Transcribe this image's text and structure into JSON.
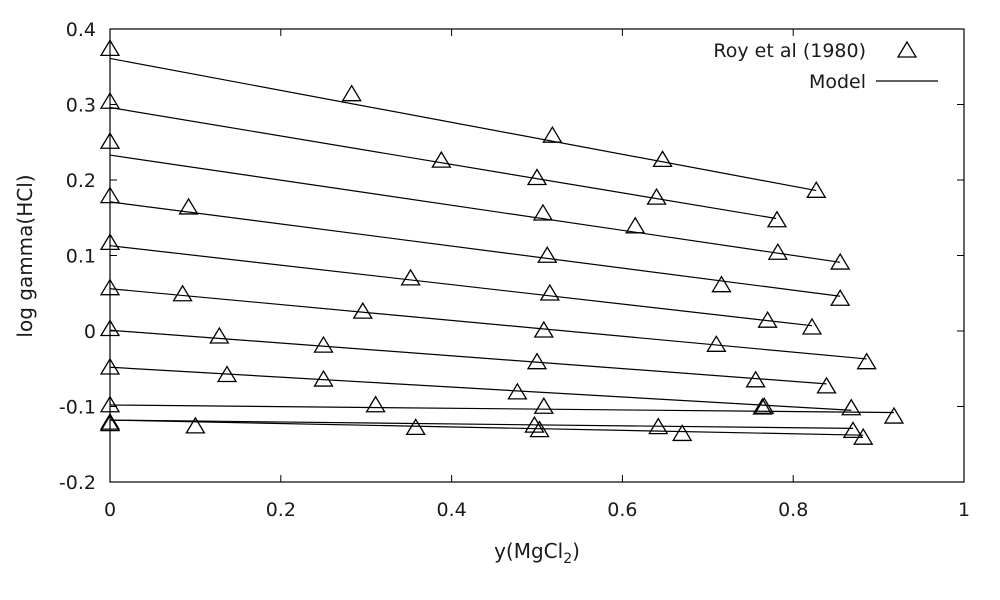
{
  "chart_data": {
    "type": "scatter",
    "xlabel": {
      "base": "y(MgCl",
      "sub": "2",
      "tail": ")"
    },
    "ylabel": "log gamma(HCl)",
    "xlim": [
      0,
      1
    ],
    "ylim": [
      -0.2,
      0.4
    ],
    "xticks": [
      0,
      0.2,
      0.4,
      0.6,
      0.8,
      1
    ],
    "xtick_labels": [
      "0",
      "0.2",
      "0.4",
      "0.6",
      "0.8",
      "1"
    ],
    "yticks": [
      -0.2,
      -0.1,
      0,
      0.1,
      0.2,
      0.3,
      0.4
    ],
    "ytick_labels": [
      "-0.2",
      "-0.1",
      "0",
      "0.1",
      "0.2",
      "0.3",
      "0.4"
    ],
    "grid": false,
    "legend_position": "top-right",
    "legend": [
      {
        "label": "Roy et al (1980)",
        "marker": "triangle-open"
      },
      {
        "label": "Model",
        "marker": "line"
      }
    ],
    "series": [
      {
        "name": "Roy et al (1980)",
        "type": "scatter",
        "marker": "triangle-open",
        "points": [
          [
            0,
            0.375
          ],
          [
            0.283,
            0.315
          ],
          [
            0.518,
            0.26
          ],
          [
            0.647,
            0.228
          ],
          [
            0.827,
            0.187
          ],
          [
            0,
            0.305
          ],
          [
            0.388,
            0.227
          ],
          [
            0.5,
            0.204
          ],
          [
            0.64,
            0.178
          ],
          [
            0.781,
            0.148
          ],
          [
            0,
            0.252
          ],
          [
            0.507,
            0.157
          ],
          [
            0.615,
            0.14
          ],
          [
            0.782,
            0.105
          ],
          [
            0.855,
            0.092
          ],
          [
            0,
            0.18
          ],
          [
            0.092,
            0.165
          ],
          [
            0.512,
            0.101
          ],
          [
            0.716,
            0.062
          ],
          [
            0.855,
            0.044
          ],
          [
            0,
            0.118
          ],
          [
            0.352,
            0.071
          ],
          [
            0.515,
            0.051
          ],
          [
            0.77,
            0.015
          ],
          [
            0.822,
            0.006
          ],
          [
            0,
            0.058
          ],
          [
            0.085,
            0.05
          ],
          [
            0.296,
            0.027
          ],
          [
            0.508,
            0.002
          ],
          [
            0.71,
            -0.017
          ],
          [
            0,
            0.004
          ],
          [
            0.128,
            -0.006
          ],
          [
            0.25,
            -0.018
          ],
          [
            0.5,
            -0.04
          ],
          [
            0.756,
            -0.064
          ],
          [
            0.886,
            -0.04
          ],
          [
            0,
            -0.047
          ],
          [
            0.137,
            -0.057
          ],
          [
            0.25,
            -0.063
          ],
          [
            0.477,
            -0.08
          ],
          [
            0.766,
            -0.099
          ],
          [
            0.839,
            -0.072
          ],
          [
            0,
            -0.097
          ],
          [
            0.311,
            -0.097
          ],
          [
            0.508,
            -0.099
          ],
          [
            0.764,
            -0.1
          ],
          [
            0.868,
            -0.101
          ],
          [
            0.918,
            -0.112
          ],
          [
            0,
            -0.12
          ],
          [
            0.1,
            -0.125
          ],
          [
            0.358,
            -0.127
          ],
          [
            0.497,
            -0.124
          ],
          [
            0.642,
            -0.126
          ],
          [
            0.87,
            -0.131
          ],
          [
            0,
            -0.122
          ],
          [
            0.503,
            -0.13
          ],
          [
            0.67,
            -0.135
          ],
          [
            0.882,
            -0.14
          ]
        ]
      },
      {
        "name": "Model",
        "type": "line",
        "lines": [
          [
            [
              0,
              0.361
            ],
            [
              0.827,
              0.186
            ]
          ],
          [
            [
              0,
              0.296
            ],
            [
              0.78,
              0.149
            ]
          ],
          [
            [
              0,
              0.233
            ],
            [
              0.855,
              0.091
            ]
          ],
          [
            [
              0,
              0.171
            ],
            [
              0.855,
              0.046
            ]
          ],
          [
            [
              0,
              0.113
            ],
            [
              0.822,
              0.007
            ]
          ],
          [
            [
              0,
              0.056
            ],
            [
              0.886,
              -0.037
            ]
          ],
          [
            [
              0,
              0.001
            ],
            [
              0.839,
              -0.07
            ]
          ],
          [
            [
              0,
              -0.048
            ],
            [
              0.868,
              -0.105
            ]
          ],
          [
            [
              0,
              -0.098
            ],
            [
              0.918,
              -0.108
            ]
          ],
          [
            [
              0,
              -0.118
            ],
            [
              0.87,
              -0.129
            ]
          ],
          [
            [
              0,
              -0.118
            ],
            [
              0.882,
              -0.138
            ]
          ]
        ]
      }
    ]
  }
}
